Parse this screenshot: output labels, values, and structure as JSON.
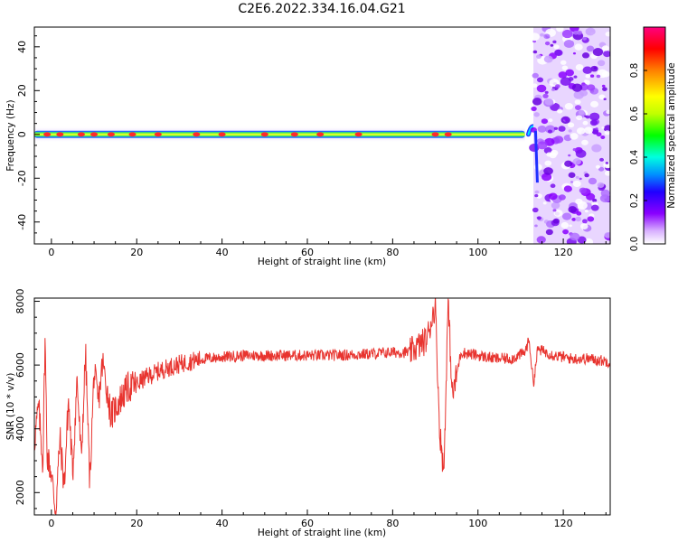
{
  "title": "C2E6.2022.334.16.04.G21",
  "chart_data": [
    {
      "type": "heatmap",
      "xlabel": "Height of straight line (km)",
      "ylabel": "Frequency (Hz)",
      "xlim": [
        -4,
        131
      ],
      "ylim": [
        -50,
        49
      ],
      "xticks": [
        "0",
        "20",
        "40",
        "60",
        "80",
        "100",
        "120"
      ],
      "yticks": [
        "40",
        "20",
        "0",
        "-20",
        "-40"
      ],
      "colorbar": {
        "label": "Normalized spectral amplitude",
        "range": [
          0.0,
          1.0
        ],
        "ticks": [
          "0.0",
          "0.2",
          "0.4",
          "0.6",
          "0.8"
        ],
        "colors": [
          "#ffffff",
          "#d8b0ff",
          "#8a00ff",
          "#2000ff",
          "#0090ff",
          "#00ffe0",
          "#00ff00",
          "#c0ff00",
          "#ffff00",
          "#ff8000",
          "#ff0000",
          "#ff0080"
        ]
      },
      "ridge": {
        "frequency_hz": 0,
        "dip": {
          "height_km": 113.5,
          "min_frequency_hz": -22
        },
        "peak_hotspots_km": [
          -1,
          2,
          7,
          10,
          14,
          19,
          25,
          34,
          40,
          50,
          57,
          63,
          72,
          90,
          93
        ]
      },
      "noise_region_km": [
        113,
        131
      ]
    },
    {
      "type": "line",
      "xlabel": "Height of straight line (km)",
      "ylabel": "SNR (10 * v/v)",
      "xlim": [
        -4,
        131
      ],
      "ylim": [
        1300,
        8100
      ],
      "xticks": [
        "0",
        "20",
        "40",
        "60",
        "80",
        "100",
        "120"
      ],
      "yticks": [
        "8000",
        "6000",
        "4000",
        "2000"
      ],
      "color": "#e8342f",
      "series": [
        {
          "x": [
            -4,
            -3,
            -2,
            -1.5,
            -1,
            0,
            1,
            2,
            3,
            4,
            5,
            6,
            7,
            8,
            9,
            10,
            11,
            12,
            14,
            16,
            18,
            20,
            22,
            25,
            28,
            32,
            36,
            40,
            45,
            50,
            55,
            60,
            65,
            70,
            75,
            80,
            84,
            86,
            88,
            90,
            91,
            92,
            93,
            94,
            96,
            100,
            104,
            108,
            111,
            112,
            113,
            114,
            118,
            122,
            126,
            131
          ],
          "y": [
            3600,
            4700,
            2900,
            6900,
            3200,
            2600,
            1400,
            3700,
            2200,
            4900,
            2600,
            5600,
            3000,
            6400,
            2300,
            5800,
            4800,
            6100,
            4400,
            4900,
            5300,
            5400,
            5600,
            5800,
            5950,
            6100,
            6200,
            6250,
            6300,
            6300,
            6300,
            6300,
            6300,
            6320,
            6350,
            6400,
            6400,
            6600,
            6800,
            7900,
            4000,
            2600,
            8000,
            5000,
            6400,
            6300,
            6200,
            6200,
            6400,
            6800,
            5400,
            6500,
            6300,
            6200,
            6200,
            6100
          ]
        }
      ]
    }
  ]
}
